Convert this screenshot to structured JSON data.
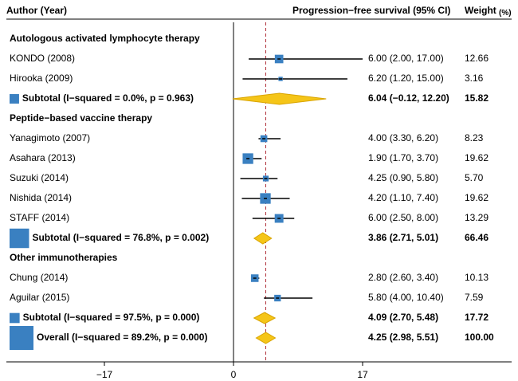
{
  "chart_data": {
    "type": "forest",
    "headers": {
      "study": "Author (Year)",
      "effect": "Progression−free survival (95% CI)",
      "weight": "Weight",
      "weight_unit": "(%)"
    },
    "x_axis": {
      "range": [
        -30,
        37
      ],
      "ticks": [
        "−17",
        "0",
        "17"
      ],
      "tick_values": [
        -17,
        0,
        17
      ],
      "reference_line": 0,
      "overall_line": 4.25
    },
    "rows": [
      {
        "kind": "group",
        "label": "Autologous activated lymphocyte therapy"
      },
      {
        "kind": "study",
        "label": "KONDO (2008)",
        "est": 6.0,
        "lo": 2.0,
        "hi": 17.0,
        "ci_text": "6.00 (2.00, 17.00)",
        "weight": "12.66",
        "w": 12.66
      },
      {
        "kind": "study",
        "label": "Hirooka (2009)",
        "est": 6.2,
        "lo": 1.2,
        "hi": 15.0,
        "ci_text": "6.20 (1.20, 15.00)",
        "weight": "3.16",
        "w": 3.16
      },
      {
        "kind": "subtotal",
        "label": "Subtotal  (I−squared = 0.0%, p = 0.963)",
        "est": 6.04,
        "lo": -0.12,
        "hi": 12.2,
        "ci_text": "6.04 (−0.12, 12.20)",
        "weight": "15.82",
        "w": 15.82
      },
      {
        "kind": "group",
        "label": "Peptide−based vaccine therapy"
      },
      {
        "kind": "study",
        "label": "Yanagimoto (2007)",
        "est": 4.0,
        "lo": 3.3,
        "hi": 6.2,
        "ci_text": "4.00 (3.30, 6.20)",
        "weight": "8.23",
        "w": 8.23
      },
      {
        "kind": "study",
        "label": "Asahara (2013)",
        "est": 1.9,
        "lo": 1.7,
        "hi": 3.7,
        "ci_text": "1.90 (1.70, 3.70)",
        "weight": "19.62",
        "w": 19.62
      },
      {
        "kind": "study",
        "label": "Suzuki (2014)",
        "est": 4.25,
        "lo": 0.9,
        "hi": 5.8,
        "ci_text": "4.25 (0.90, 5.80)",
        "weight": "5.70",
        "w": 5.7
      },
      {
        "kind": "study",
        "label": "Nishida (2014)",
        "est": 4.2,
        "lo": 1.1,
        "hi": 7.4,
        "ci_text": "4.20 (1.10, 7.40)",
        "weight": "19.62",
        "w": 19.62
      },
      {
        "kind": "study",
        "label": "STAFF (2014)",
        "est": 6.0,
        "lo": 2.5,
        "hi": 8.0,
        "ci_text": "6.00 (2.50, 8.00)",
        "weight": "13.29",
        "w": 13.29
      },
      {
        "kind": "subtotal",
        "label": "Subtotal  (I−squared = 76.8%, p = 0.002)",
        "est": 3.86,
        "lo": 2.71,
        "hi": 5.01,
        "ci_text": "3.86 (2.71, 5.01)",
        "weight": "66.46",
        "w": 66.46
      },
      {
        "kind": "group",
        "label": "Other immunotherapies"
      },
      {
        "kind": "study",
        "label": "Chung (2014)",
        "est": 2.8,
        "lo": 2.6,
        "hi": 3.4,
        "ci_text": "2.80 (2.60, 3.40)",
        "weight": "10.13",
        "w": 10.13
      },
      {
        "kind": "study",
        "label": "Aguilar (2015)",
        "est": 5.8,
        "lo": 4.0,
        "hi": 10.4,
        "ci_text": "5.80 (4.00, 10.40)",
        "weight": "7.59",
        "w": 7.59
      },
      {
        "kind": "subtotal",
        "label": "Subtotal  (I−squared = 97.5%, p = 0.000)",
        "est": 4.09,
        "lo": 2.7,
        "hi": 5.48,
        "ci_text": "4.09 (2.70, 5.48)",
        "weight": "17.72",
        "w": 17.72
      },
      {
        "kind": "overall",
        "label": "Overall  (I−squared = 89.2%, p = 0.000)",
        "est": 4.25,
        "lo": 2.98,
        "hi": 5.51,
        "ci_text": "4.25 (2.98, 5.51)",
        "weight": "100.00",
        "w": 100.0
      }
    ],
    "colors": {
      "square": "#3a80c1",
      "diamond": "#f5c518",
      "diamond_stroke": "#d9a400",
      "overall_line": "#b0303a",
      "line": "#000000"
    }
  }
}
